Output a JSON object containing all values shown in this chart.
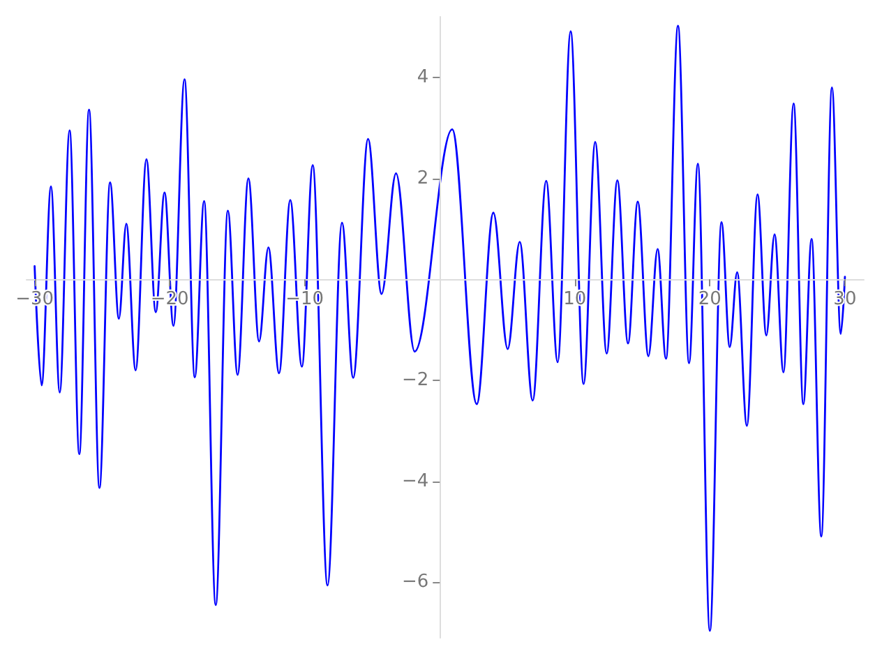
{
  "chart_data": {
    "type": "line",
    "x": [
      -30,
      -29.48,
      -28.79,
      -28.14,
      -27.41,
      -26.69,
      -25.97,
      -25.2,
      -24.41,
      -23.76,
      -23.21,
      -22.52,
      -21.72,
      -21.03,
      -20.38,
      -19.72,
      -18.9,
      -18.14,
      -17.45,
      -16.59,
      -15.69,
      -14.97,
      -14.17,
      -13.38,
      -12.69,
      -11.9,
      -11.07,
      -10.21,
      -9.41,
      -8.31,
      -7.24,
      -6.41,
      -5.31,
      -4.31,
      -3.24,
      -1.86,
      0.92,
      2.74,
      3.97,
      5.03,
      5.92,
      6.88,
      7.88,
      8.73,
      9.69,
      10.65,
      11.51,
      12.36,
      13.15,
      13.94,
      14.66,
      15.45,
      16.13,
      16.75,
      17.64,
      18.46,
      19.11,
      20.0,
      20.86,
      21.47,
      22.02,
      22.74,
      23.53,
      24.18,
      24.79,
      25.45,
      26.2,
      26.92,
      27.53,
      28.25,
      29.04,
      29.69,
      30
    ],
    "series": [
      {
        "color": "#0000ff",
        "values": [
          0.26,
          -2.1,
          1.84,
          -2.24,
          2.95,
          -3.46,
          3.36,
          -4.13,
          1.92,
          -0.78,
          1.1,
          -1.8,
          2.38,
          -0.65,
          1.72,
          -0.92,
          3.96,
          -1.94,
          1.55,
          -6.45,
          1.36,
          -1.89,
          2.0,
          -1.23,
          0.63,
          -1.86,
          1.57,
          -1.73,
          2.26,
          -6.06,
          1.12,
          -1.95,
          2.78,
          -0.29,
          2.1,
          -1.43,
          2.97,
          -2.47,
          1.32,
          -1.38,
          0.74,
          -2.4,
          1.95,
          -1.64,
          4.91,
          -2.07,
          2.72,
          -1.47,
          1.96,
          -1.27,
          1.54,
          -1.52,
          0.6,
          -1.57,
          5.02,
          -1.66,
          2.29,
          -6.96,
          1.13,
          -1.34,
          0.14,
          -2.9,
          1.68,
          -1.11,
          0.89,
          -1.84,
          3.48,
          -2.47,
          0.8,
          -5.09,
          3.8,
          -1.08,
          0.05
        ]
      }
    ],
    "xlim": [
      -30.6,
      31.4
    ],
    "ylim": [
      -7.1,
      5.2
    ],
    "xticks": [
      {
        "value": -30,
        "label": "−30"
      },
      {
        "value": -20,
        "label": "−20"
      },
      {
        "value": -10,
        "label": "−10"
      },
      10,
      20,
      30
    ],
    "yticks": [
      {
        "value": -6,
        "label": "−6"
      },
      {
        "value": -4,
        "label": "−4"
      },
      {
        "value": -2,
        "label": "−2"
      },
      2,
      4
    ],
    "grid": false,
    "marker": "none",
    "line_style": "solid"
  }
}
